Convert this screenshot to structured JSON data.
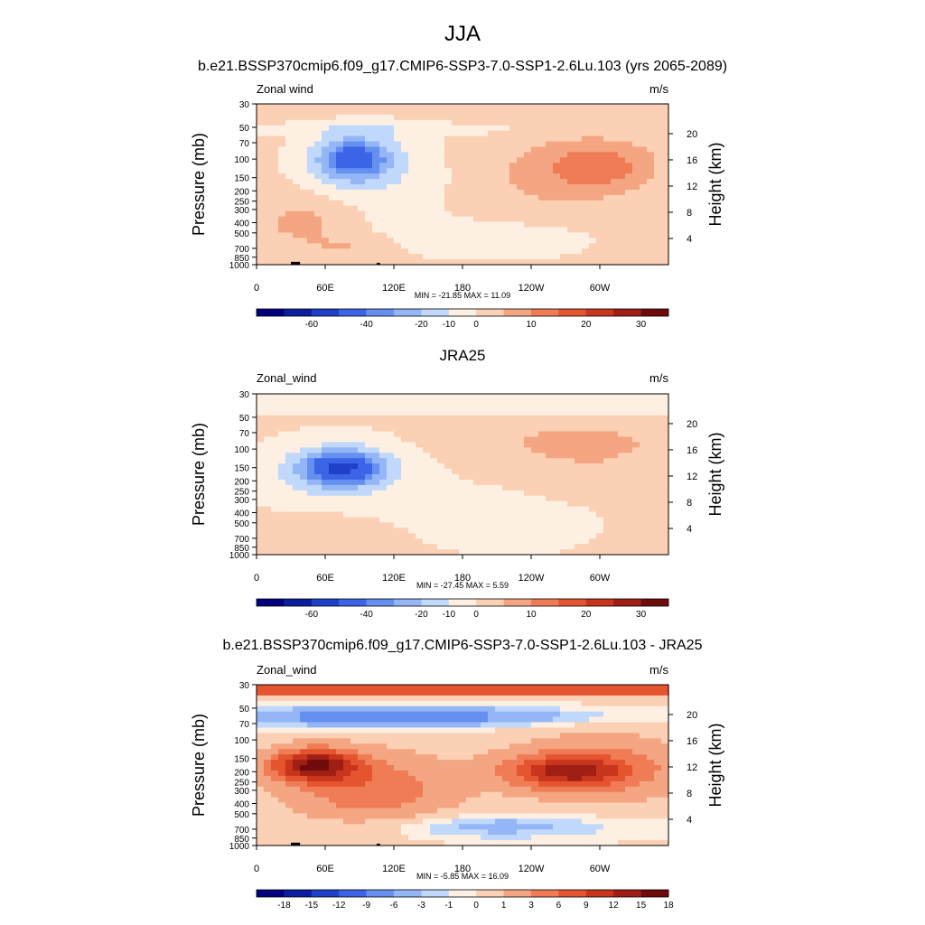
{
  "figure": {
    "title": "JJA"
  },
  "chart_data": [
    {
      "type": "heatmap",
      "title": "b.e21.BSSP370cmip6.f09_g17.CMIP6-SSP3-7.0-SSP1-2.6Lu.103 (yrs 2065-2089)",
      "variable": "Zonal wind",
      "units": "m/s",
      "ylabel": "Pressure (mb)",
      "ylabel_right": "Height (km)",
      "x_ticks": [
        "0",
        "60E",
        "120E",
        "180",
        "120W",
        "60W"
      ],
      "x_range": [
        0,
        360
      ],
      "pressure_ticks": [
        "30",
        "50",
        "70",
        "100",
        "150",
        "200",
        "250",
        "300",
        "400",
        "500",
        "700",
        "850",
        "1000"
      ],
      "height_ticks": [
        "4",
        "8",
        "12",
        "16",
        "20"
      ],
      "y_range": [
        30,
        1000
      ],
      "y_scale": "log",
      "stats": "MIN = -21.85  MAX =  11.09",
      "min": -21.85,
      "max": 11.09,
      "contour_levels": [
        -70,
        -60,
        -50,
        -40,
        -30,
        -20,
        -15,
        -10,
        -5,
        0,
        5,
        10,
        15,
        20,
        25,
        30,
        35
      ],
      "colorbar_labels": [
        -60,
        -40,
        -20,
        -10,
        0,
        10,
        20,
        30
      ],
      "features": [
        {
          "lon": 85,
          "p": 120,
          "value": -21.85
        },
        {
          "lon": 305,
          "p": 140,
          "value": 11.09
        },
        {
          "lon": 90,
          "p": 680,
          "value": 5
        }
      ]
    },
    {
      "type": "heatmap",
      "title": "JRA25",
      "variable": "Zonal_wind",
      "units": "m/s",
      "ylabel": "Pressure (mb)",
      "ylabel_right": "Height (km)",
      "x_ticks": [
        "0",
        "60E",
        "120E",
        "180",
        "120W",
        "60W"
      ],
      "x_range": [
        0,
        360
      ],
      "pressure_ticks": [
        "30",
        "50",
        "70",
        "100",
        "150",
        "200",
        "250",
        "300",
        "400",
        "500",
        "700",
        "850",
        "1000"
      ],
      "height_ticks": [
        "4",
        "8",
        "12",
        "16",
        "20"
      ],
      "y_range": [
        30,
        1000
      ],
      "y_scale": "log",
      "stats": "MIN = -27.45  MAX =   5.59",
      "min": -27.45,
      "max": 5.59,
      "contour_levels": [
        -70,
        -60,
        -50,
        -40,
        -30,
        -20,
        -15,
        -10,
        -5,
        0,
        5,
        10,
        15,
        20,
        25,
        30,
        35
      ],
      "colorbar_labels": [
        -60,
        -40,
        -20,
        -10,
        0,
        10,
        20,
        30
      ],
      "features": [
        {
          "lon": 75,
          "p": 160,
          "value": -27.45
        },
        {
          "lon": 300,
          "p": 150,
          "value": 5.59
        }
      ]
    },
    {
      "type": "heatmap",
      "title": "b.e21.BSSP370cmip6.f09_g17.CMIP6-SSP3-7.0-SSP1-2.6Lu.103 - JRA25",
      "variable": "Zonal_wind",
      "units": "m/s",
      "ylabel": "Pressure (mb)",
      "ylabel_right": "Height (km)",
      "x_ticks": [
        "0",
        "60E",
        "120E",
        "180",
        "120W",
        "60W"
      ],
      "x_range": [
        0,
        360
      ],
      "pressure_ticks": [
        "30",
        "50",
        "70",
        "100",
        "150",
        "200",
        "250",
        "300",
        "400",
        "500",
        "700",
        "850",
        "1000"
      ],
      "height_ticks": [
        "4",
        "8",
        "12",
        "16",
        "20"
      ],
      "y_range": [
        30,
        1000
      ],
      "y_scale": "log",
      "stats": "MIN =  -5.85  MAX =  16.09",
      "min": -5.85,
      "max": 16.09,
      "contour_levels": [
        -21,
        -18,
        -15,
        -12,
        -9,
        -6,
        -3,
        -1,
        0,
        1,
        3,
        6,
        9,
        12,
        15,
        18,
        21
      ],
      "colorbar_labels": [
        -18,
        -15,
        -12,
        -9,
        -6,
        -3,
        -1,
        0,
        1,
        3,
        6,
        9,
        12,
        15,
        18
      ],
      "features": [
        {
          "lon": 50,
          "p": 180,
          "value": 16.09
        },
        {
          "lon": 270,
          "p": 230,
          "value": 11
        },
        {
          "lon": 200,
          "p": 70,
          "value": -5.85
        }
      ]
    }
  ],
  "colors": {
    "palette": [
      "#00007f",
      "#0a1e9e",
      "#1f40c8",
      "#3c64e6",
      "#6690f0",
      "#94b6f7",
      "#c0d8fb",
      "#fdf0e2",
      "#fbd0b4",
      "#f4a582",
      "#f07c56",
      "#e4542f",
      "#c8341c",
      "#a01f14",
      "#700b0b"
    ],
    "topography": "#000000"
  }
}
